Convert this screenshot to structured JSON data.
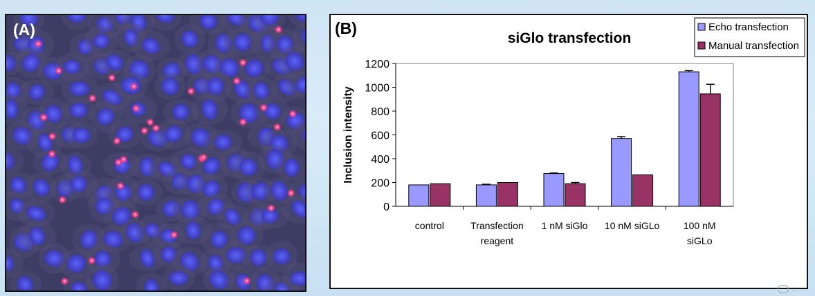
{
  "panel_a": {
    "label": "(A)"
  },
  "panel_b": {
    "label": "(B)"
  },
  "colors": {
    "echo": "#9999ff",
    "manual": "#993366",
    "cell_bg": "#3d3c64",
    "nucleus": "#4a4ce0",
    "spot": "#ff3d8a"
  },
  "watermark": {
    "text": "……"
  },
  "chart_data": {
    "type": "bar",
    "title": "siGlo transfection",
    "ylabel": "Inclusion intensity",
    "xlabel": "",
    "ylim": [
      0,
      1200
    ],
    "yticks": [
      0,
      200,
      400,
      600,
      800,
      1000,
      1200
    ],
    "categories": [
      [
        "control"
      ],
      [
        "Transfection",
        "reagent"
      ],
      [
        "1 nM siGlo"
      ],
      [
        "10 nM siGLo"
      ],
      [
        "100 nM",
        "siGLo"
      ]
    ],
    "series": [
      {
        "name": "Echo transfection",
        "color": "#9999ff",
        "values": [
          180,
          180,
          275,
          570,
          1130
        ],
        "errors": [
          0,
          5,
          5,
          15,
          10
        ]
      },
      {
        "name": "Manual transfection",
        "color": "#993366",
        "values": [
          190,
          200,
          190,
          265,
          945
        ],
        "errors": [
          0,
          0,
          10,
          0,
          80
        ]
      }
    ],
    "legend_position": "top-right",
    "grid": false
  }
}
